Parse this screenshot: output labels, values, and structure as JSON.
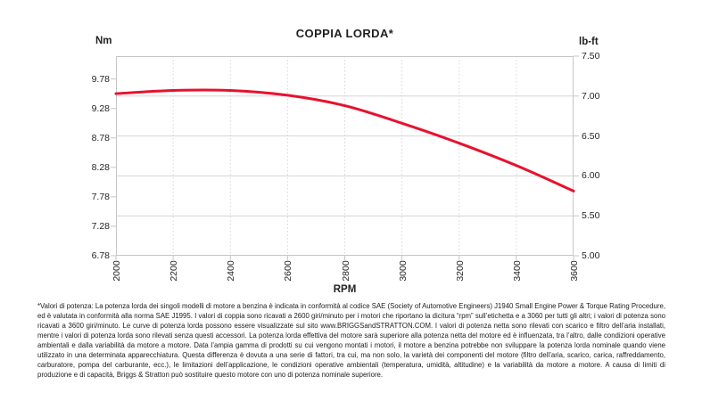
{
  "chart": {
    "title": "COPPIA LORDA*",
    "left_axis_unit": "Nm",
    "right_axis_unit": "lb-ft",
    "x_axis_label": "RPM",
    "curve_color": "#e8112d",
    "grid_color": "#d6d6d6",
    "border_color": "#c6c6c6",
    "text_color": "#231f20"
  },
  "chart_data": {
    "type": "line",
    "title": "COPPIA LORDA*",
    "xlabel": "RPM",
    "ylabel_left": "Nm",
    "ylabel_right": "lb-ft",
    "x": [
      2000,
      2200,
      2400,
      2600,
      2800,
      3000,
      3200,
      3400,
      3600
    ],
    "series": [
      {
        "name": "Coppia lorda (Nm)",
        "values": [
          9.54,
          9.59,
          9.59,
          9.51,
          9.33,
          9.03,
          8.69,
          8.32,
          7.88
        ]
      },
      {
        "name": "Coppia lorda (lb-ft)",
        "values": [
          7.03,
          7.07,
          7.07,
          7.01,
          6.88,
          6.66,
          6.41,
          6.13,
          5.81
        ]
      }
    ],
    "left_ticks_nm": [
      "9.78",
      "9.28",
      "8.78",
      "8.28",
      "7.78",
      "7.28",
      "6.78"
    ],
    "right_ticks_lbft": [
      "7.50",
      "7.00",
      "6.50",
      "6.00",
      "5.50",
      "5.00"
    ],
    "x_ticks": [
      "2000",
      "2200",
      "2400",
      "2600",
      "2800",
      "3000",
      "3200",
      "3400",
      "3600"
    ],
    "xlim": [
      2000,
      3600
    ],
    "ylim_lbft": [
      5.0,
      7.5
    ],
    "ylim_nm": [
      6.78,
      10.17
    ],
    "nm_per_lbft": 1.3558,
    "grid": true,
    "legend": false,
    "line_color": "#e8112d"
  },
  "footnote": {
    "text": "*Valori di potenza: La potenza lorda dei singoli modelli di motore a benzina è indicata in conformità al codice SAE (Society of Automotive Engineers) J1940 Small Engine Power & Torque Rating Procedure, ed è valutata in conformità alla norma SAE J1995. I valori di coppia sono ricavati a 2600 giri/minuto per i motori che riportano la dicitura “rpm” sull’etichetta e a 3060 per tutti gli altri; i valori di potenza sono ricavati a 3600 giri/minuto. Le curve di potenza lorda possono essere visualizzate sul sito www.BRIGGSandSTRATTON.COM. I valori di potenza netta sono rilevati con scarico e filtro dell’aria installati, mentre i valori di potenza lorda sono rilevati senza questi accessori. La potenza lorda effettiva del motore sarà superiore alla potenza netta del motore ed è influenzata, tra l’altro, dalle condizioni operative ambientali e dalla variabilità da motore a motore. Data l’ampia gamma di prodotti su cui vengono montati i motori, il motore a benzina potrebbe non sviluppare la potenza lorda nominale quando viene utilizzato in una determinata apparecchiatura. Questa differenza è dovuta a una serie di fattori, tra cui, ma non solo, la varietà dei componenti del motore (filtro dell’aria, scarico, carica, raffreddamento, carburatore, pompa del carburante, ecc.), le limitazioni dell’applicazione, le condizioni operative ambientali (temperatura, umidità, altitudine) e la variabilità da motore a motore. A causa di limiti di produzione e di capacità, Briggs & Stratton può sostituire questo motore con uno di potenza nominale superiore."
  }
}
